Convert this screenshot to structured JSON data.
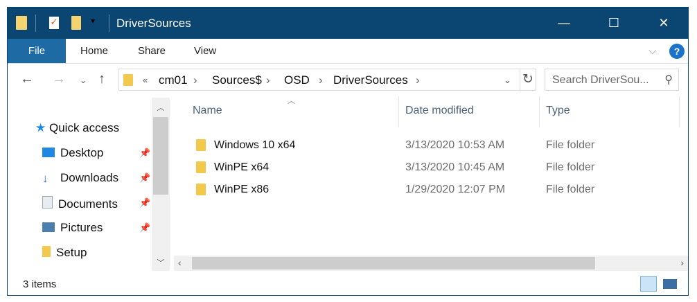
{
  "window": {
    "title": "DriverSources",
    "minimize": "—",
    "maximize": "☐",
    "close": "✕"
  },
  "ribbon": {
    "tabs": [
      "File",
      "Home",
      "Share",
      "View"
    ],
    "help": "?",
    "expand": "⌵"
  },
  "address": {
    "overflow": "«",
    "crumbs": [
      "cm01",
      "Sources$",
      "OSD",
      "DriverSources"
    ],
    "search_placeholder": "Search DriverSou..."
  },
  "sidebar": {
    "quick_access": "Quick access",
    "items": [
      {
        "label": "Desktop",
        "pinned": true,
        "icon": "desktop-icon",
        "color": "#1e88e5"
      },
      {
        "label": "Downloads",
        "pinned": true,
        "icon": "download-icon",
        "color": "#1e6fc0"
      },
      {
        "label": "Documents",
        "pinned": true,
        "icon": "document-icon",
        "color": "#9aa7b5"
      },
      {
        "label": "Pictures",
        "pinned": true,
        "icon": "pictures-icon",
        "color": "#4a7fb0"
      },
      {
        "label": "Setup",
        "pinned": false,
        "icon": "folder-icon",
        "color": "#f2c94c"
      }
    ]
  },
  "columns": [
    "Name",
    "Date modified",
    "Type"
  ],
  "files": [
    {
      "name": "Windows 10 x64",
      "date": "3/13/2020 10:53 AM",
      "type": "File folder"
    },
    {
      "name": "WinPE x64",
      "date": "3/13/2020 10:45 AM",
      "type": "File folder"
    },
    {
      "name": "WinPE x86",
      "date": "1/29/2020 12:07 PM",
      "type": "File folder"
    }
  ],
  "status": {
    "count": "3 items"
  }
}
